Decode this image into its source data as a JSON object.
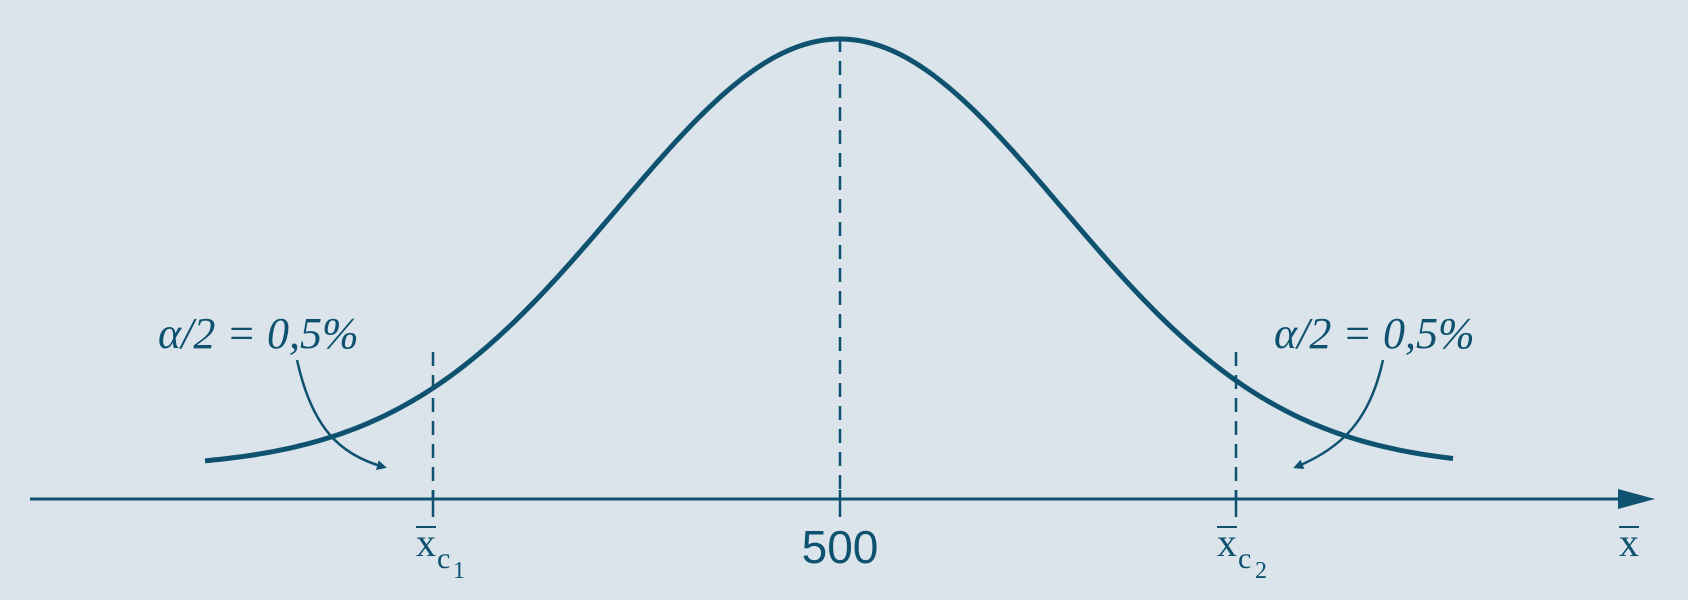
{
  "colors": {
    "background": "#dae4ea",
    "ink": "#0e5270"
  },
  "diagram": {
    "type": "normal-distribution-two-tailed-test",
    "mean_label": "500",
    "left_tail": {
      "alpha_label": "α/2 = 0,5%",
      "critical_base": "x",
      "critical_sub": "c",
      "critical_index": "1"
    },
    "right_tail": {
      "alpha_label": "α/2 = 0,5%",
      "critical_base": "x",
      "critical_sub": "c",
      "critical_index": "2"
    },
    "axis_label": "x"
  }
}
